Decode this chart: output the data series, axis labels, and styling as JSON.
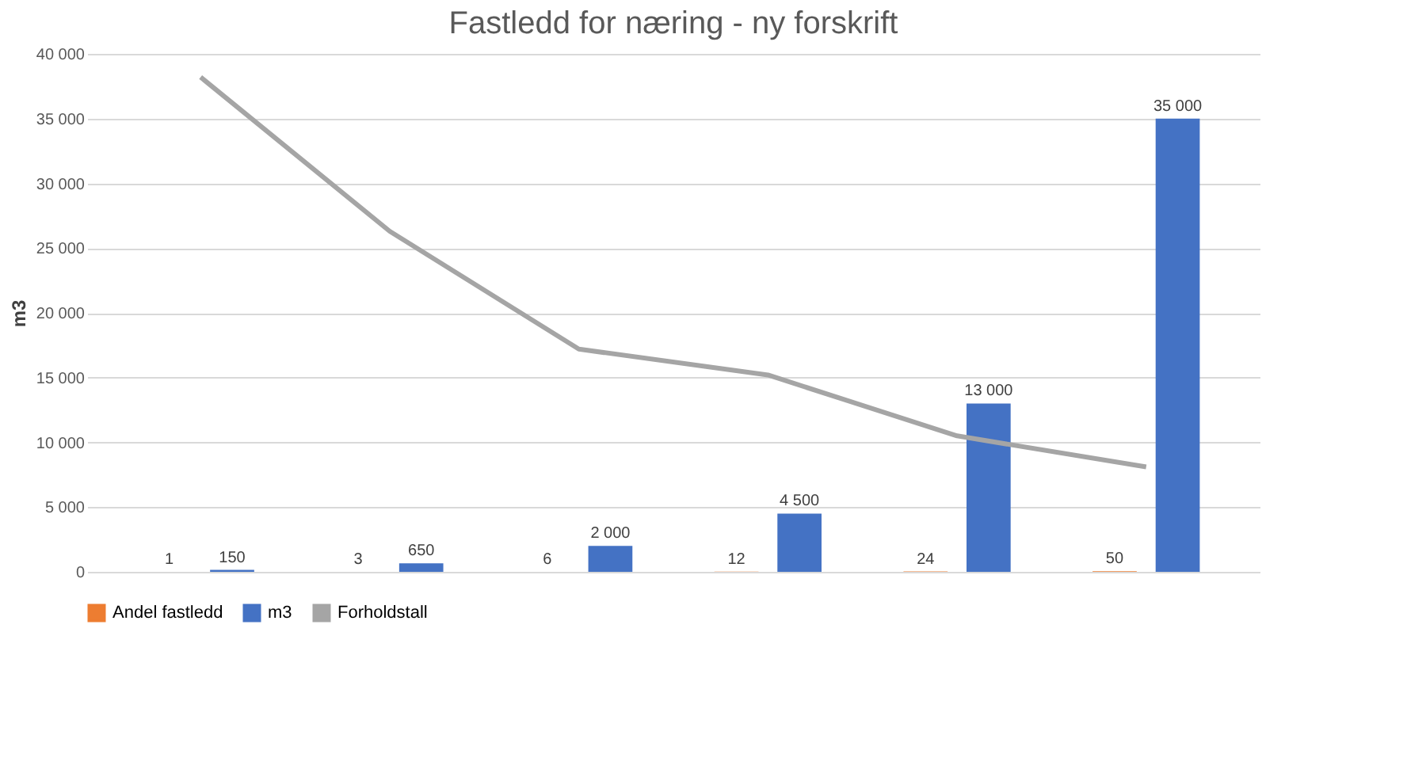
{
  "chart_data": {
    "type": "bar",
    "title": "Fastledd for næring - ny forskrift",
    "ylabel": "m3",
    "categories": [
      null,
      null,
      null,
      null,
      null,
      null
    ],
    "series": [
      {
        "name": "Andel fastledd",
        "color": "#ed7d31",
        "values": [
          1,
          3,
          6,
          12,
          24,
          50
        ],
        "value_labels": [
          "1",
          "3",
          "6",
          "12",
          "24",
          "50"
        ]
      },
      {
        "name": "m3",
        "color": "#4472c4",
        "values": [
          150,
          650,
          2000,
          4500,
          13000,
          35000
        ],
        "value_labels": [
          "150",
          "650",
          "2 000",
          "4 500",
          "13 000",
          "35 000"
        ]
      },
      {
        "name": "Forholdstall",
        "type": "line",
        "color": "#a5a5a5",
        "values": [
          38200,
          26300,
          17200,
          15200,
          10500,
          8100
        ]
      }
    ],
    "ylim": [
      0,
      40000
    ],
    "yticks": [
      {
        "value": 0,
        "label": "0"
      },
      {
        "value": 5000,
        "label": "5 000"
      },
      {
        "value": 10000,
        "label": "10 000"
      },
      {
        "value": 15000,
        "label": "15 000"
      },
      {
        "value": 20000,
        "label": "20 000"
      },
      {
        "value": 25000,
        "label": "25 000"
      },
      {
        "value": 30000,
        "label": "30 000"
      },
      {
        "value": 35000,
        "label": "35 000"
      },
      {
        "value": 40000,
        "label": "40 000"
      }
    ],
    "grid": "y",
    "legend": "bottom",
    "marker": "none",
    "line_style": "solid"
  }
}
